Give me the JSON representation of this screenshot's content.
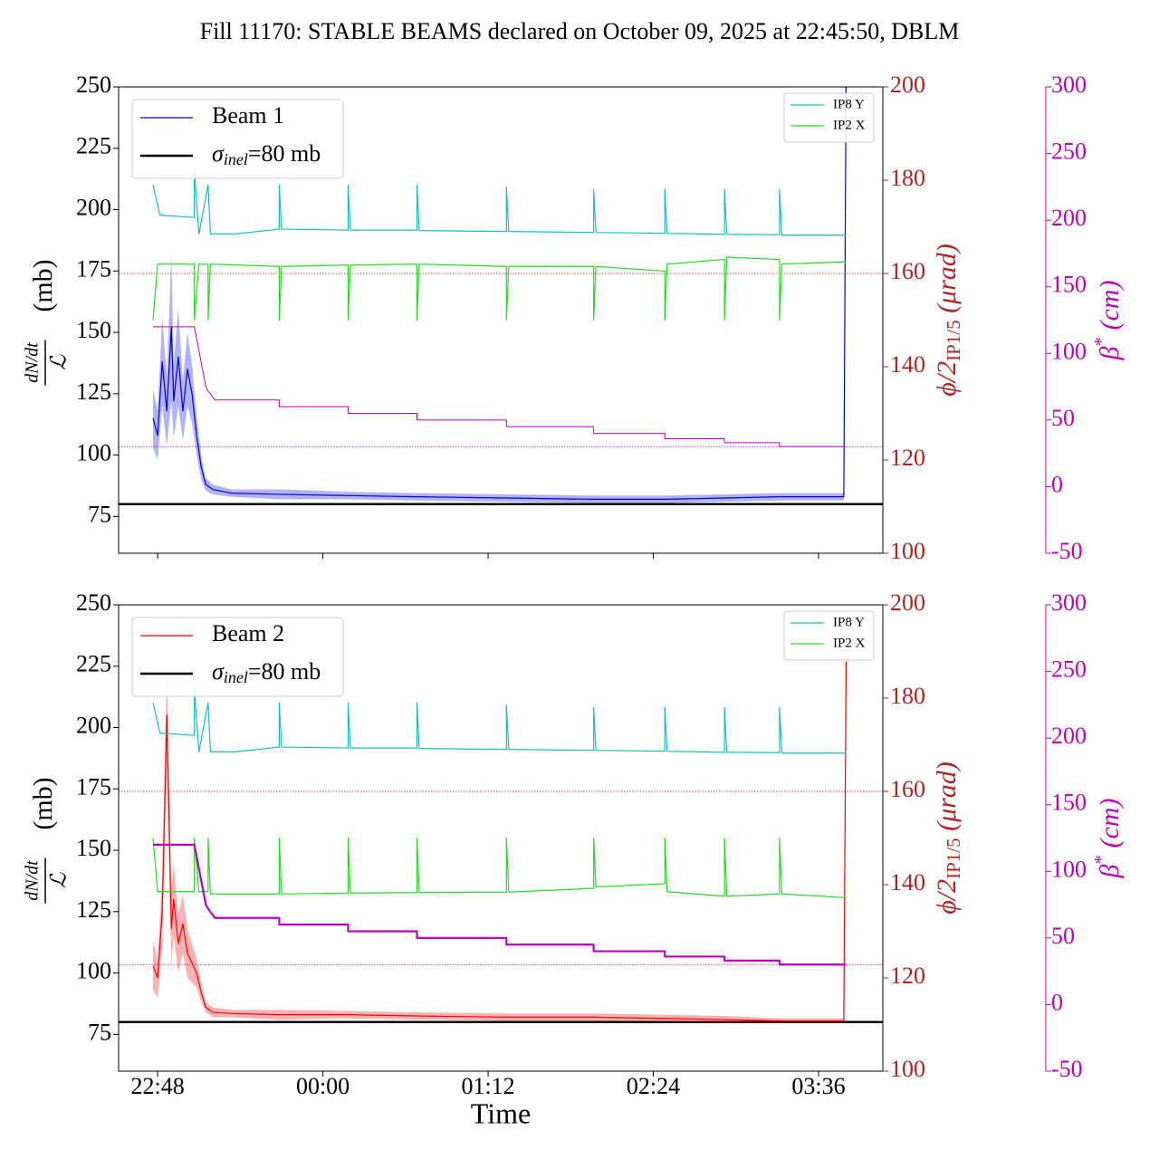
{
  "title": "Fill 11170: STABLE BEAMS declared on October 09, 2025 at 22:45:50, DBLM",
  "chart_data": [
    {
      "type": "line",
      "ylabel": {
        "numerator": "dN/dt",
        "denominator": "ℒ",
        "unit": "(mb)"
      },
      "y2label": {
        "main": "ϕ/2",
        "subscript": "IP1/5",
        "unit": " (μrad)"
      },
      "y3label": {
        "main": "β",
        "superscript": "*",
        "unit": " (cm)"
      },
      "ylim": [
        60,
        250
      ],
      "yticks": [
        75,
        100,
        125,
        150,
        175,
        200,
        225,
        250
      ],
      "y2lim": [
        100,
        200
      ],
      "y2ticks": [
        100,
        120,
        140,
        160,
        180,
        200
      ],
      "y3lim": [
        -50,
        300
      ],
      "y3ticks": [
        -50,
        0,
        50,
        100,
        150,
        200,
        250,
        300
      ],
      "axis_colors": {
        "y2": "#b22222",
        "y3": "#bf00bf"
      },
      "series": [
        {
          "name": "Beam 1",
          "color": "#0000e0",
          "axis": "y",
          "x": [
            "22:46",
            "22:48",
            "22:50",
            "22:52",
            "22:54",
            "22:55",
            "22:57",
            "22:59",
            "23:01",
            "23:03",
            "23:05",
            "23:07",
            "23:09",
            "23:12",
            "23:20",
            "23:41",
            "00:11",
            "00:41",
            "01:20",
            "01:58",
            "02:29",
            "02:55",
            "03:19",
            "03:47",
            "03:48"
          ],
          "values": [
            115,
            108,
            138,
            118,
            152,
            122,
            140,
            118,
            135,
            125,
            108,
            95,
            88,
            86,
            84.5,
            84,
            83.5,
            83,
            82.5,
            82,
            82,
            82.5,
            83,
            83,
            255
          ],
          "errors": [
            12,
            10,
            18,
            14,
            30,
            15,
            20,
            12,
            15,
            12,
            8,
            5,
            2.5,
            2,
            1.5,
            2,
            1.5,
            1.5,
            1.5,
            1.5,
            1.5,
            1.5,
            1.5,
            1.5,
            0
          ]
        },
        {
          "name": "IP8 Y",
          "color": "#17bfbf",
          "axis": "y2",
          "x": [
            "22:46",
            "22:49",
            "23:04",
            "23:04",
            "23:06",
            "23:10",
            "23:11",
            "23:22",
            "23:41",
            "23:41",
            "23:42",
            "00:11",
            "00:11",
            "00:12",
            "00:41",
            "00:41",
            "00:42",
            "01:20",
            "01:20",
            "01:21",
            "01:58",
            "01:58",
            "01:59",
            "02:29",
            "02:29",
            "02:30",
            "02:55",
            "02:55",
            "02:56",
            "03:19",
            "03:19",
            "03:20",
            "03:48"
          ],
          "values": [
            179,
            172.5,
            172,
            182,
            168.5,
            179,
            168.5,
            168.5,
            169.5,
            179,
            169.5,
            169.3,
            179,
            169.3,
            169.3,
            179,
            169.2,
            169,
            178.5,
            169,
            168.8,
            178,
            168.8,
            168.6,
            178,
            168.6,
            168.4,
            178,
            168.4,
            168.3,
            178,
            168.2,
            168.2
          ]
        },
        {
          "name": "IP2 X",
          "color": "#22dd22",
          "axis": "y2",
          "x": [
            "22:46",
            "22:48",
            "23:04",
            "23:04",
            "23:06",
            "23:10",
            "23:10",
            "23:11",
            "23:41",
            "23:41",
            "23:42",
            "00:11",
            "00:11",
            "00:12",
            "00:41",
            "00:41",
            "00:42",
            "01:20",
            "01:20",
            "01:21",
            "01:58",
            "01:58",
            "01:59",
            "02:29",
            "02:29",
            "02:30",
            "02:55",
            "02:55",
            "02:56",
            "03:19",
            "03:19",
            "03:20",
            "03:48"
          ],
          "values": [
            150,
            162,
            162,
            150,
            162,
            162,
            150,
            162,
            161.5,
            150,
            161.5,
            161.8,
            150,
            161.8,
            162,
            150,
            162,
            161.5,
            150,
            161.5,
            161.5,
            150,
            161.5,
            160.5,
            150,
            162,
            163,
            150,
            163.5,
            163,
            150,
            162,
            162.5
          ]
        },
        {
          "color": "#bf00bf",
          "axis": "y3",
          "width": 1,
          "x": [
            "22:46",
            "23:04",
            "23:09",
            "23:10",
            "23:13",
            "23:41",
            "23:41",
            "00:11",
            "00:11",
            "00:41",
            "00:41",
            "01:20",
            "01:20",
            "01:58",
            "01:58",
            "02:29",
            "02:29",
            "02:55",
            "02:55",
            "03:19",
            "03:19",
            "03:48"
          ],
          "values": [
            120,
            120,
            75,
            72,
            65,
            65,
            60,
            60,
            55,
            55,
            50,
            50,
            45,
            45,
            40,
            40,
            36,
            36,
            33,
            33,
            30,
            30
          ]
        }
      ],
      "hlines": [
        {
          "value": 80,
          "axis": "y",
          "color": "#000000",
          "symbol": "σ",
          "subscript": "inel",
          "suffix": "=80 mb"
        },
        {
          "value": 160,
          "axis": "y2",
          "color": "#b22222"
        },
        {
          "value": 30,
          "axis": "y3",
          "color": "#bf00bf"
        }
      ]
    },
    {
      "type": "line",
      "ylabel": {
        "numerator": "dN/dt",
        "denominator": "ℒ",
        "unit": "(mb)"
      },
      "y2label": {
        "main": "ϕ/2",
        "subscript": "IP1/5",
        "unit": " (μrad)"
      },
      "y3label": {
        "main": "β",
        "superscript": "*",
        "unit": " (cm)"
      },
      "xlabel": "Time",
      "xlim": [
        "22:31",
        "04:04"
      ],
      "xticks": [
        "22:48",
        "00:00",
        "01:12",
        "02:24",
        "03:36"
      ],
      "ylim": [
        60,
        250
      ],
      "yticks": [
        75,
        100,
        125,
        150,
        175,
        200,
        225,
        250
      ],
      "y2lim": [
        100,
        200
      ],
      "y2ticks": [
        100,
        120,
        140,
        160,
        180,
        200
      ],
      "y3lim": [
        -50,
        300
      ],
      "y3ticks": [
        -50,
        0,
        50,
        100,
        150,
        200,
        250,
        300
      ],
      "axis_colors": {
        "y2": "#b22222",
        "y3": "#bf00bf"
      },
      "series": [
        {
          "name": "Beam 2",
          "color": "#ff0000",
          "axis": "y",
          "x": [
            "22:46",
            "22:48",
            "22:50",
            "22:52",
            "22:54",
            "22:55",
            "22:57",
            "22:59",
            "23:01",
            "23:03",
            "23:05",
            "23:07",
            "23:09",
            "23:12",
            "23:20",
            "23:41",
            "00:11",
            "00:41",
            "01:20",
            "01:58",
            "02:29",
            "02:55",
            "03:19",
            "03:47",
            "03:48"
          ],
          "values": [
            103,
            98,
            125,
            205,
            118,
            130,
            112,
            120,
            108,
            104,
            100,
            92,
            86,
            84,
            83.5,
            83,
            83,
            82.5,
            82,
            82,
            81.5,
            81,
            80.5,
            80.5,
            227
          ],
          "errors": [
            10,
            8,
            15,
            20,
            15,
            15,
            12,
            12,
            10,
            8,
            6,
            4,
            2,
            2,
            1.5,
            2,
            1.5,
            1.5,
            1.5,
            1.5,
            1.5,
            1.5,
            1,
            1,
            0
          ]
        },
        {
          "name": "IP8 Y",
          "color": "#17bfbf",
          "axis": "y2",
          "x": [
            "22:46",
            "22:49",
            "23:04",
            "23:04",
            "23:06",
            "23:10",
            "23:11",
            "23:22",
            "23:41",
            "23:41",
            "23:42",
            "00:11",
            "00:11",
            "00:12",
            "00:41",
            "00:41",
            "00:42",
            "01:20",
            "01:20",
            "01:21",
            "01:58",
            "01:58",
            "01:59",
            "02:29",
            "02:29",
            "02:30",
            "02:55",
            "02:55",
            "02:56",
            "03:19",
            "03:19",
            "03:20",
            "03:48"
          ],
          "values": [
            179,
            172.5,
            172,
            182,
            168.5,
            179,
            168.5,
            168.5,
            169.5,
            179,
            169.5,
            169.3,
            179,
            169.3,
            169.3,
            179,
            169.2,
            169,
            178.5,
            169,
            168.8,
            178,
            168.8,
            168.6,
            178,
            168.6,
            168.4,
            178,
            168.4,
            168.3,
            178,
            168.2,
            168.2
          ]
        },
        {
          "name": "IP2 X",
          "color": "#22dd22",
          "axis": "y2",
          "x": [
            "22:46",
            "22:48",
            "23:04",
            "23:04",
            "23:06",
            "23:10",
            "23:10",
            "23:11",
            "23:41",
            "23:41",
            "23:42",
            "00:11",
            "00:11",
            "00:12",
            "00:41",
            "00:41",
            "00:42",
            "01:20",
            "01:20",
            "01:21",
            "01:58",
            "01:58",
            "01:59",
            "02:29",
            "02:29",
            "02:30",
            "02:55",
            "02:55",
            "02:56",
            "03:19",
            "03:19",
            "03:20",
            "03:48"
          ],
          "values": [
            150,
            138.5,
            138.5,
            150,
            138.5,
            138.5,
            150,
            138,
            138,
            150,
            138,
            138.2,
            150,
            138.2,
            138.3,
            150,
            138.3,
            138.4,
            150,
            138.4,
            139.2,
            150,
            139.5,
            140.2,
            150,
            138.5,
            137.5,
            150,
            137.5,
            138,
            150,
            138,
            137.2
          ]
        },
        {
          "color": "#bf00bf",
          "axis": "y3",
          "width": 2.2,
          "x": [
            "22:46",
            "23:04",
            "23:09",
            "23:10",
            "23:13",
            "23:41",
            "23:41",
            "00:11",
            "00:11",
            "00:41",
            "00:41",
            "01:20",
            "01:20",
            "01:58",
            "01:58",
            "02:29",
            "02:29",
            "02:55",
            "02:55",
            "03:19",
            "03:19",
            "03:48"
          ],
          "values": [
            120,
            120,
            75,
            72,
            65,
            65,
            60,
            60,
            55,
            55,
            50,
            50,
            45,
            45,
            40,
            40,
            36,
            36,
            33,
            33,
            30,
            30
          ]
        }
      ],
      "hlines": [
        {
          "value": 80,
          "axis": "y",
          "color": "#000000",
          "symbol": "σ",
          "subscript": "inel",
          "suffix": "=80 mb"
        },
        {
          "value": 160,
          "axis": "y2",
          "color": "#b22222"
        },
        {
          "value": 30,
          "axis": "y3",
          "color": "#bf00bf"
        }
      ]
    }
  ]
}
